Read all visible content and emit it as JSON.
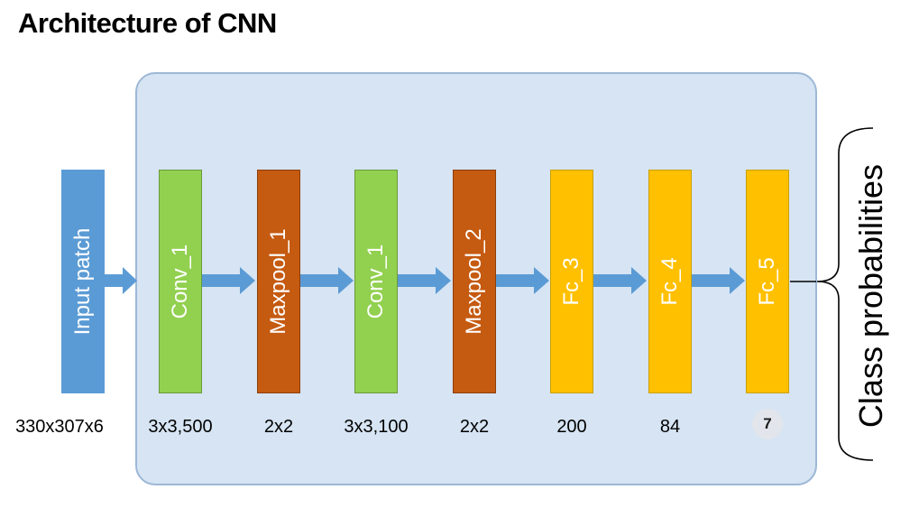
{
  "title": "Architecture of CNN",
  "input": {
    "label": "Input patch",
    "dim": "330x307x6"
  },
  "layers": [
    {
      "label": "Conv_1",
      "dim": "3x3,500",
      "color": "#92d050"
    },
    {
      "label": "Maxpool_1",
      "dim": "2x2",
      "color": "#c55a11"
    },
    {
      "label": "Conv_1",
      "dim": "3x3,100",
      "color": "#92d050"
    },
    {
      "label": "Maxpool_2",
      "dim": "2x2",
      "color": "#c55a11"
    },
    {
      "label": "Fc_3",
      "dim": "200",
      "color": "#ffc000"
    },
    {
      "label": "Fc_4",
      "dim": "84",
      "color": "#ffc000"
    },
    {
      "label": "Fc_5",
      "dim": "7",
      "color": "#ffc000"
    }
  ],
  "output_label": "Class probabilities",
  "colors": {
    "input": "#5b9bd5",
    "arrow": "#5b9bd5",
    "panel": "#d6e4f3"
  }
}
